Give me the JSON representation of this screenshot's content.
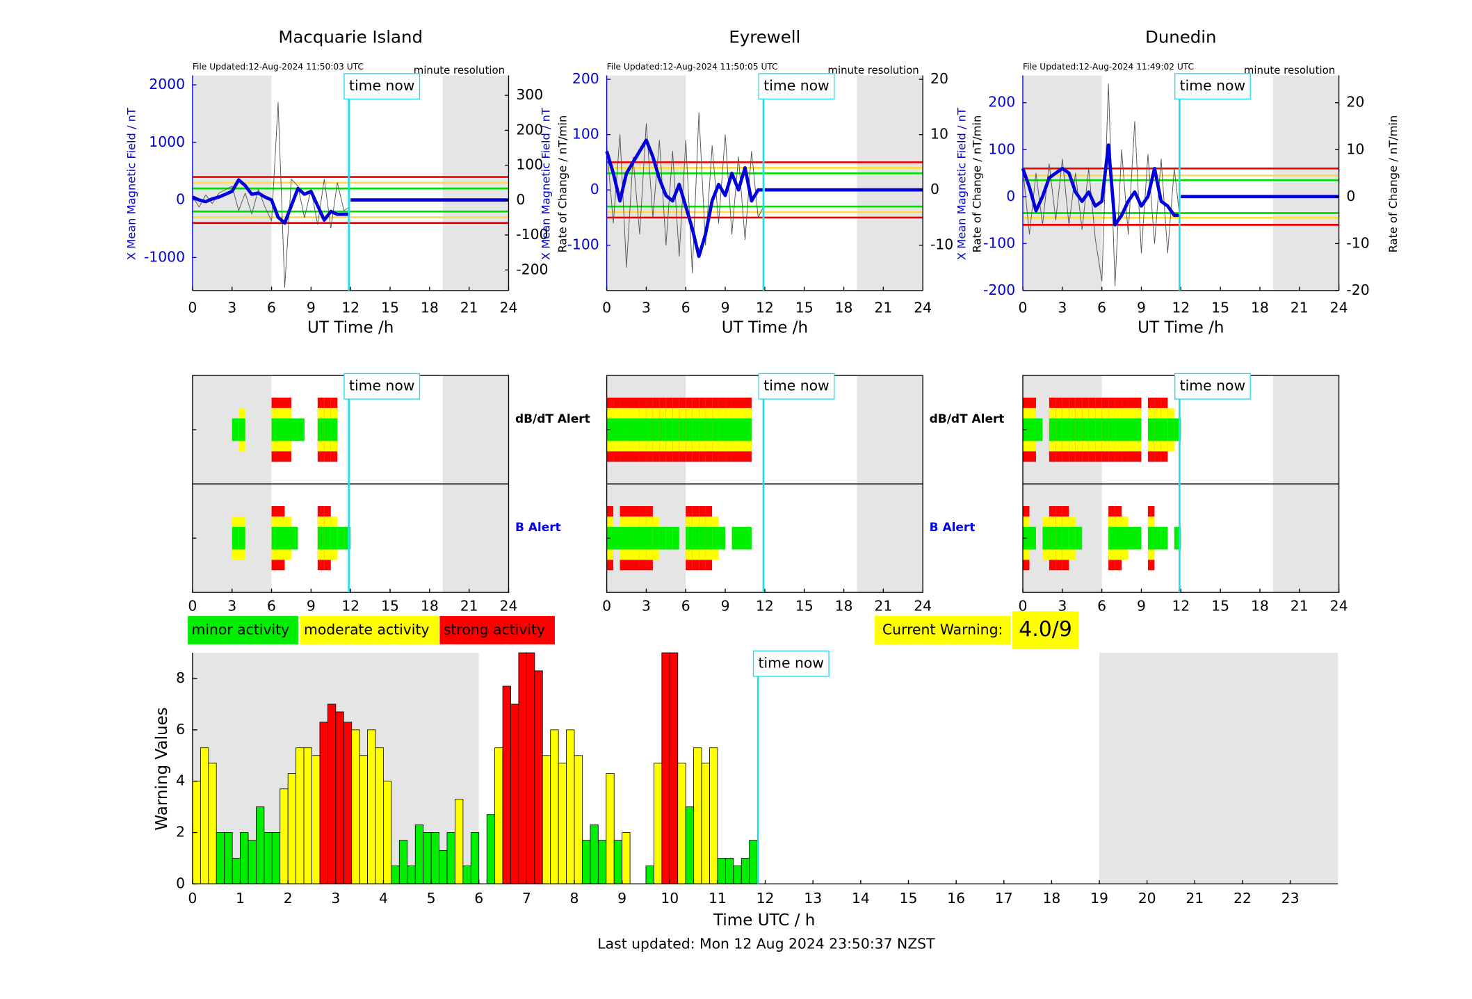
{
  "chart_data": [
    {
      "type": "line",
      "title": "Macquarie Island",
      "file_updated": "File Updated:12-Aug-2024 11:50:03 UTC",
      "resolution": "minute resolution",
      "time_now_label": "time now",
      "time_now": 11.87,
      "xlim": [
        0,
        24
      ],
      "xticks": [
        0,
        3,
        6,
        9,
        12,
        15,
        18,
        21,
        24
      ],
      "xlabel": "UT Time /h",
      "ylim": [
        -1574,
        2164
      ],
      "yticks": [
        -1000,
        0,
        1000,
        2000
      ],
      "ylabel": "X Mean Magnetic Field / nT",
      "y2lim": [
        -259,
        357
      ],
      "y2ticks": [
        -200,
        -100,
        0,
        100,
        200,
        300
      ],
      "y2label": "Rate of Change / nT/min",
      "shaded": [
        [
          0,
          6
        ],
        [
          19,
          24
        ]
      ],
      "thresholds": [
        {
          "value": 200,
          "color": "#00dd00"
        },
        {
          "value": 300,
          "color": "#ffdd44"
        },
        {
          "value": 400,
          "color": "#ee0000"
        }
      ],
      "x": [
        0,
        0.5,
        1,
        1.5,
        2,
        2.5,
        3,
        3.5,
        4,
        4.5,
        5,
        5.5,
        6,
        6.5,
        7,
        7.5,
        8,
        8.5,
        9,
        9.5,
        10,
        10.5,
        11,
        11.5,
        11.9,
        11.95,
        12,
        24
      ],
      "series": [
        {
          "color": "#555555",
          "axis": "y2",
          "values": [
            10,
            -20,
            15,
            -10,
            20,
            30,
            40,
            -30,
            20,
            -40,
            30,
            -20,
            -60,
            280,
            -250,
            60,
            40,
            -50,
            30,
            -70,
            60,
            -80,
            50,
            -30,
            -20,
            null,
            null,
            null
          ]
        },
        {
          "color": "#0000dd",
          "values": [
            50,
            0,
            -30,
            20,
            50,
            100,
            150,
            350,
            250,
            100,
            120,
            50,
            0,
            -300,
            -400,
            -100,
            200,
            100,
            150,
            -100,
            -350,
            -200,
            -250,
            -250,
            -250,
            null,
            0,
            0
          ]
        }
      ]
    },
    {
      "type": "line",
      "title": "Eyrewell",
      "file_updated": "File Updated:12-Aug-2024 11:50:05 UTC",
      "resolution": "minute resolution",
      "time_now_label": "time now",
      "time_now": 11.9,
      "xlim": [
        0,
        24
      ],
      "xticks": [
        0,
        3,
        6,
        9,
        12,
        15,
        18,
        21,
        24
      ],
      "xlabel": "UT Time /h",
      "ylim": [
        -182,
        207
      ],
      "yticks": [
        -100,
        0,
        100,
        200
      ],
      "ylabel": "X Mean Magnetic Field / nT",
      "y2lim": [
        -18.2,
        20.7
      ],
      "y2ticks": [
        -10,
        0,
        10,
        20
      ],
      "y2label": "Rate of Change / nT/min",
      "shaded": [
        [
          0,
          6
        ],
        [
          19,
          24
        ]
      ],
      "thresholds": [
        {
          "value": 30,
          "color": "#00dd00"
        },
        {
          "value": 40,
          "color": "#ffdd44"
        },
        {
          "value": 50,
          "color": "#ee0000"
        }
      ],
      "x": [
        0,
        0.5,
        1,
        1.5,
        2,
        2.5,
        3,
        3.5,
        4,
        4.5,
        5,
        5.5,
        6,
        6.5,
        7,
        7.5,
        8,
        8.5,
        9,
        9.5,
        10,
        10.5,
        11,
        11.5,
        11.9,
        11.95,
        12,
        24
      ],
      "series": [
        {
          "color": "#555555",
          "axis": "y2",
          "values": [
            8,
            -6,
            10,
            -14,
            6,
            -8,
            12,
            -5,
            9,
            -10,
            7,
            -12,
            9,
            -15,
            14,
            -10,
            8,
            -6,
            10,
            -8,
            6,
            -9,
            7,
            -5,
            -3,
            null,
            null,
            null
          ]
        },
        {
          "color": "#0000dd",
          "values": [
            70,
            30,
            -20,
            30,
            50,
            70,
            90,
            60,
            20,
            -10,
            -20,
            10,
            -30,
            -70,
            -120,
            -80,
            -20,
            10,
            -10,
            30,
            0,
            40,
            -20,
            0,
            0,
            null,
            0,
            0
          ]
        }
      ]
    },
    {
      "type": "line",
      "title": "Dunedin",
      "file_updated": "File Updated:12-Aug-2024 11:49:02 UTC",
      "resolution": "minute resolution",
      "time_now_label": "time now",
      "time_now": 11.9,
      "xlim": [
        0,
        24
      ],
      "xticks": [
        0,
        3,
        6,
        9,
        12,
        15,
        18,
        21,
        24
      ],
      "xlabel": "UT Time /h",
      "ylim": [
        -200,
        258
      ],
      "yticks": [
        -200,
        -100,
        0,
        100,
        200
      ],
      "ylabel": "X Mean Magnetic Field / nT",
      "y2lim": [
        -20,
        25.8
      ],
      "y2ticks": [
        -20,
        -10,
        0,
        10,
        20
      ],
      "y2label": "Rate of Change / nT/min",
      "shaded": [
        [
          0,
          6
        ],
        [
          19,
          24
        ]
      ],
      "thresholds": [
        {
          "value": 35,
          "color": "#00dd00"
        },
        {
          "value": 45,
          "color": "#ffdd44"
        },
        {
          "value": 60,
          "color": "#ee0000"
        }
      ],
      "x": [
        0,
        0.5,
        1,
        1.5,
        2,
        2.5,
        3,
        3.5,
        4,
        4.5,
        5,
        5.5,
        6,
        6.5,
        7,
        7.5,
        8,
        8.5,
        9,
        9.5,
        10,
        10.5,
        11,
        11.5,
        11.9,
        11.95,
        12,
        24
      ],
      "series": [
        {
          "color": "#555555",
          "axis": "y2",
          "values": [
            6,
            -8,
            5,
            -6,
            7,
            -5,
            8,
            -6,
            5,
            -7,
            6,
            -9,
            -18,
            24,
            -19,
            10,
            -8,
            16,
            -12,
            9,
            -10,
            8,
            -12,
            6,
            -4,
            null,
            null,
            null
          ]
        },
        {
          "color": "#0000dd",
          "values": [
            60,
            20,
            -30,
            0,
            40,
            50,
            60,
            50,
            10,
            -10,
            10,
            -20,
            -10,
            110,
            -60,
            -40,
            -10,
            10,
            -20,
            0,
            60,
            -10,
            -20,
            -40,
            -40,
            null,
            0,
            0
          ]
        }
      ]
    },
    {
      "type": "alert",
      "xlim": [
        0,
        24
      ],
      "xticks": [
        0,
        3,
        6,
        9,
        12,
        15,
        18,
        21,
        24
      ],
      "shaded": [
        [
          0,
          6
        ],
        [
          19,
          24
        ]
      ],
      "time_now": 11.87,
      "time_now_label": "time now",
      "x": [
        0,
        0.5,
        1,
        1.5,
        2,
        2.5,
        3,
        3.5,
        4,
        4.5,
        5,
        5.5,
        6,
        6.5,
        7,
        7.5,
        8,
        8.5,
        9,
        9.5,
        10,
        10.5,
        11,
        11.5
      ],
      "rows": [
        {
          "label": "dB/dT Alert",
          "color": "#000000",
          "values": [
            0,
            0,
            0,
            0,
            0,
            0,
            1,
            2,
            0,
            0,
            0,
            0,
            3,
            3,
            3,
            1,
            1,
            0,
            0,
            3,
            3,
            3,
            0,
            0
          ]
        },
        {
          "label": "B Alert",
          "color": "#0000ee",
          "values": [
            0,
            0,
            0,
            0,
            0,
            0,
            2,
            2,
            0,
            0,
            0,
            0,
            3,
            3,
            2,
            1,
            0,
            0,
            0,
            3,
            3,
            2,
            1,
            1
          ]
        }
      ]
    },
    {
      "type": "alert",
      "xlim": [
        0,
        24
      ],
      "xticks": [
        0,
        3,
        6,
        9,
        12,
        15,
        18,
        21,
        24
      ],
      "shaded": [
        [
          0,
          6
        ],
        [
          19,
          24
        ]
      ],
      "time_now": 11.9,
      "time_now_label": "time now",
      "x": [
        0,
        0.5,
        1,
        1.5,
        2,
        2.5,
        3,
        3.5,
        4,
        4.5,
        5,
        5.5,
        6,
        6.5,
        7,
        7.5,
        8,
        8.5,
        9,
        9.5,
        10,
        10.5,
        11,
        11.5
      ],
      "rows": [
        {
          "label": "dB/dT Alert",
          "color": "#000000",
          "values": [
            3,
            3,
            3,
            3,
            3,
            3,
            3,
            3,
            3,
            3,
            3,
            3,
            3,
            3,
            3,
            3,
            3,
            3,
            3,
            3,
            3,
            3,
            0,
            0
          ]
        },
        {
          "label": "B Alert",
          "color": "#0000ee",
          "values": [
            3,
            1,
            3,
            3,
            3,
            3,
            3,
            2,
            1,
            1,
            1,
            0,
            3,
            3,
            3,
            3,
            2,
            1,
            0,
            1,
            1,
            1,
            0,
            0
          ]
        }
      ]
    },
    {
      "type": "alert",
      "xlim": [
        0,
        24
      ],
      "xticks": [
        0,
        3,
        6,
        9,
        12,
        15,
        18,
        21,
        24
      ],
      "shaded": [
        [
          0,
          6
        ],
        [
          19,
          24
        ]
      ],
      "time_now": 11.9,
      "time_now_label": "time now",
      "x": [
        0,
        0.5,
        1,
        1.5,
        2,
        2.5,
        3,
        3.5,
        4,
        4.5,
        5,
        5.5,
        6,
        6.5,
        7,
        7.5,
        8,
        8.5,
        9,
        9.5,
        10,
        10.5,
        11,
        11.5
      ],
      "rows": [
        {
          "values": [
            3,
            3,
            1,
            0,
            3,
            3,
            3,
            3,
            3,
            3,
            3,
            3,
            3,
            3,
            3,
            3,
            3,
            3,
            0,
            3,
            3,
            3,
            2,
            1
          ]
        },
        {
          "values": [
            3,
            1,
            0,
            2,
            3,
            3,
            3,
            2,
            1,
            0,
            0,
            0,
            0,
            3,
            3,
            2,
            1,
            1,
            0,
            3,
            1,
            1,
            0,
            1
          ]
        }
      ]
    },
    {
      "type": "bar",
      "xlim": [
        0,
        24
      ],
      "xticks": [
        0,
        1,
        2,
        3,
        4,
        5,
        6,
        7,
        8,
        9,
        10,
        11,
        12,
        13,
        14,
        15,
        16,
        17,
        18,
        19,
        20,
        21,
        22,
        23
      ],
      "ylim": [
        0,
        9
      ],
      "yticks": [
        0,
        2,
        4,
        6,
        8
      ],
      "xlabel": "Time UTC / h",
      "ylabel": "Warning Values",
      "shaded": [
        [
          0,
          6
        ],
        [
          19,
          24
        ]
      ],
      "time_now": 11.85,
      "time_now_label": "time now",
      "legend": [
        {
          "label": "minor activity",
          "color": "#00ee00"
        },
        {
          "label": "moderate activity",
          "color": "#ffff00"
        },
        {
          "label": "strong activity",
          "color": "#ff0000"
        }
      ],
      "current_warning_label": "Current Warning:",
      "current_warning": "4.0/9",
      "footer": "Last updated: Mon 12 Aug 2024 23:50:37 NZST",
      "x": [
        0,
        0.167,
        0.333,
        0.5,
        0.667,
        0.833,
        1,
        1.167,
        1.333,
        1.5,
        1.667,
        1.833,
        2,
        2.167,
        2.333,
        2.5,
        2.667,
        2.833,
        3,
        3.167,
        3.333,
        3.5,
        3.667,
        3.833,
        4,
        4.167,
        4.333,
        4.5,
        4.667,
        4.833,
        5,
        5.167,
        5.333,
        5.5,
        5.667,
        5.833,
        6,
        6.167,
        6.333,
        6.5,
        6.667,
        6.833,
        7,
        7.167,
        7.333,
        7.5,
        7.667,
        7.833,
        8,
        8.167,
        8.333,
        8.5,
        8.667,
        8.833,
        9,
        9.167,
        9.333,
        9.5,
        9.667,
        9.833,
        10,
        10.167,
        10.333,
        10.5,
        10.667,
        10.833,
        11,
        11.167,
        11.333,
        11.5,
        11.667
      ],
      "values": [
        4.0,
        5.3,
        4.7,
        2.0,
        2.0,
        1.0,
        2.0,
        1.7,
        3.0,
        2.0,
        2.0,
        3.7,
        4.3,
        5.3,
        5.3,
        5.0,
        6.3,
        7.0,
        6.7,
        6.3,
        6.0,
        5.0,
        6.0,
        5.3,
        4.0,
        0.7,
        1.7,
        0.7,
        2.3,
        2.0,
        2.0,
        1.3,
        2.0,
        3.3,
        0.7,
        2.0,
        0,
        2.7,
        5.3,
        7.7,
        7.0,
        9.0,
        9.0,
        8.3,
        5.0,
        6.0,
        4.7,
        6.0,
        5.0,
        1.7,
        2.3,
        1.7,
        4.3,
        1.7,
        2.0,
        0,
        0,
        0.7,
        4.7,
        9.0,
        9.0,
        4.7,
        3.0,
        5.3,
        4.7,
        5.3,
        1.0,
        1.0,
        0.7,
        1.0,
        1.7
      ],
      "colors": [
        "#ffff00",
        "#ffff00",
        "#ffff00",
        "#00ee00",
        "#00ee00",
        "#00ee00",
        "#00ee00",
        "#00ee00",
        "#00ee00",
        "#00ee00",
        "#00ee00",
        "#ffff00",
        "#ffff00",
        "#ffff00",
        "#ffff00",
        "#ffff00",
        "#ff0000",
        "#ff0000",
        "#ff0000",
        "#ff0000",
        "#ffff00",
        "#ffff00",
        "#ffff00",
        "#ffff00",
        "#ffff00",
        "#00ee00",
        "#00ee00",
        "#00ee00",
        "#00ee00",
        "#00ee00",
        "#00ee00",
        "#00ee00",
        "#00ee00",
        "#ffff00",
        "#00ee00",
        "#00ee00",
        "#00ee00",
        "#00ee00",
        "#ffff00",
        "#ff0000",
        "#ff0000",
        "#ff0000",
        "#ff0000",
        "#ff0000",
        "#ffff00",
        "#ffff00",
        "#ffff00",
        "#ffff00",
        "#ffff00",
        "#00ee00",
        "#00ee00",
        "#00ee00",
        "#ffff00",
        "#00ee00",
        "#ffff00",
        "#00ee00",
        "#00ee00",
        "#00ee00",
        "#ffff00",
        "#ff0000",
        "#ff0000",
        "#ffff00",
        "#00ee00",
        "#ffff00",
        "#ffff00",
        "#ffff00",
        "#00ee00",
        "#00ee00",
        "#00ee00",
        "#00ee00",
        "#00ee00"
      ]
    }
  ]
}
